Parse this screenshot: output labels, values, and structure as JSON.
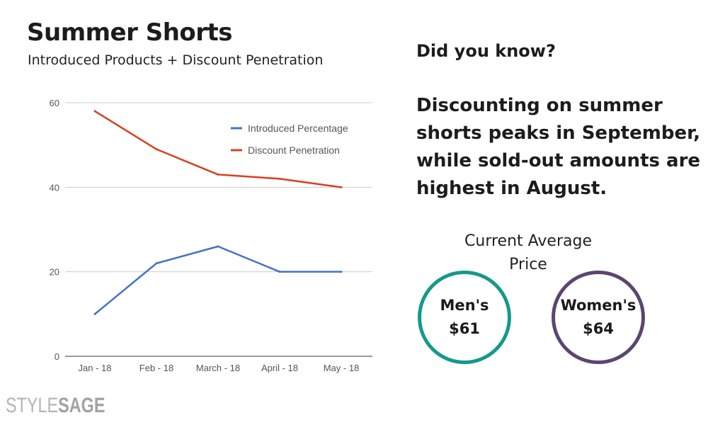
{
  "header": {
    "title": "Summer Shorts",
    "subtitle": "Introduced Products + Discount Penetration"
  },
  "callout": {
    "heading": "Did you know?",
    "text": "Discounting on summer shorts peaks in September, while sold-out amounts are highest in August."
  },
  "prices": {
    "heading": "Current Average Price",
    "men": {
      "label": "Men's",
      "value": "$61",
      "color": "#14998a"
    },
    "women": {
      "label": "Women's",
      "value": "$64",
      "color": "#5c4570"
    }
  },
  "logo": {
    "part1": "STYLE",
    "part2": "SAGE"
  },
  "chart_data": {
    "type": "line",
    "categories": [
      "Jan - 18",
      "Feb - 18",
      "March - 18",
      "April - 18",
      "May - 18"
    ],
    "series": [
      {
        "name": "Introduced Percentage",
        "values": [
          10,
          22,
          26,
          20,
          20
        ],
        "color": "#4472c4"
      },
      {
        "name": "Discount Penetration",
        "values": [
          58,
          49,
          43,
          42,
          40
        ],
        "color": "#d9401f"
      }
    ],
    "ylim": [
      0,
      60
    ],
    "yticks": [
      0,
      20,
      40,
      60
    ],
    "grid": true,
    "legend": "top-right",
    "xlabel": "",
    "ylabel": ""
  }
}
